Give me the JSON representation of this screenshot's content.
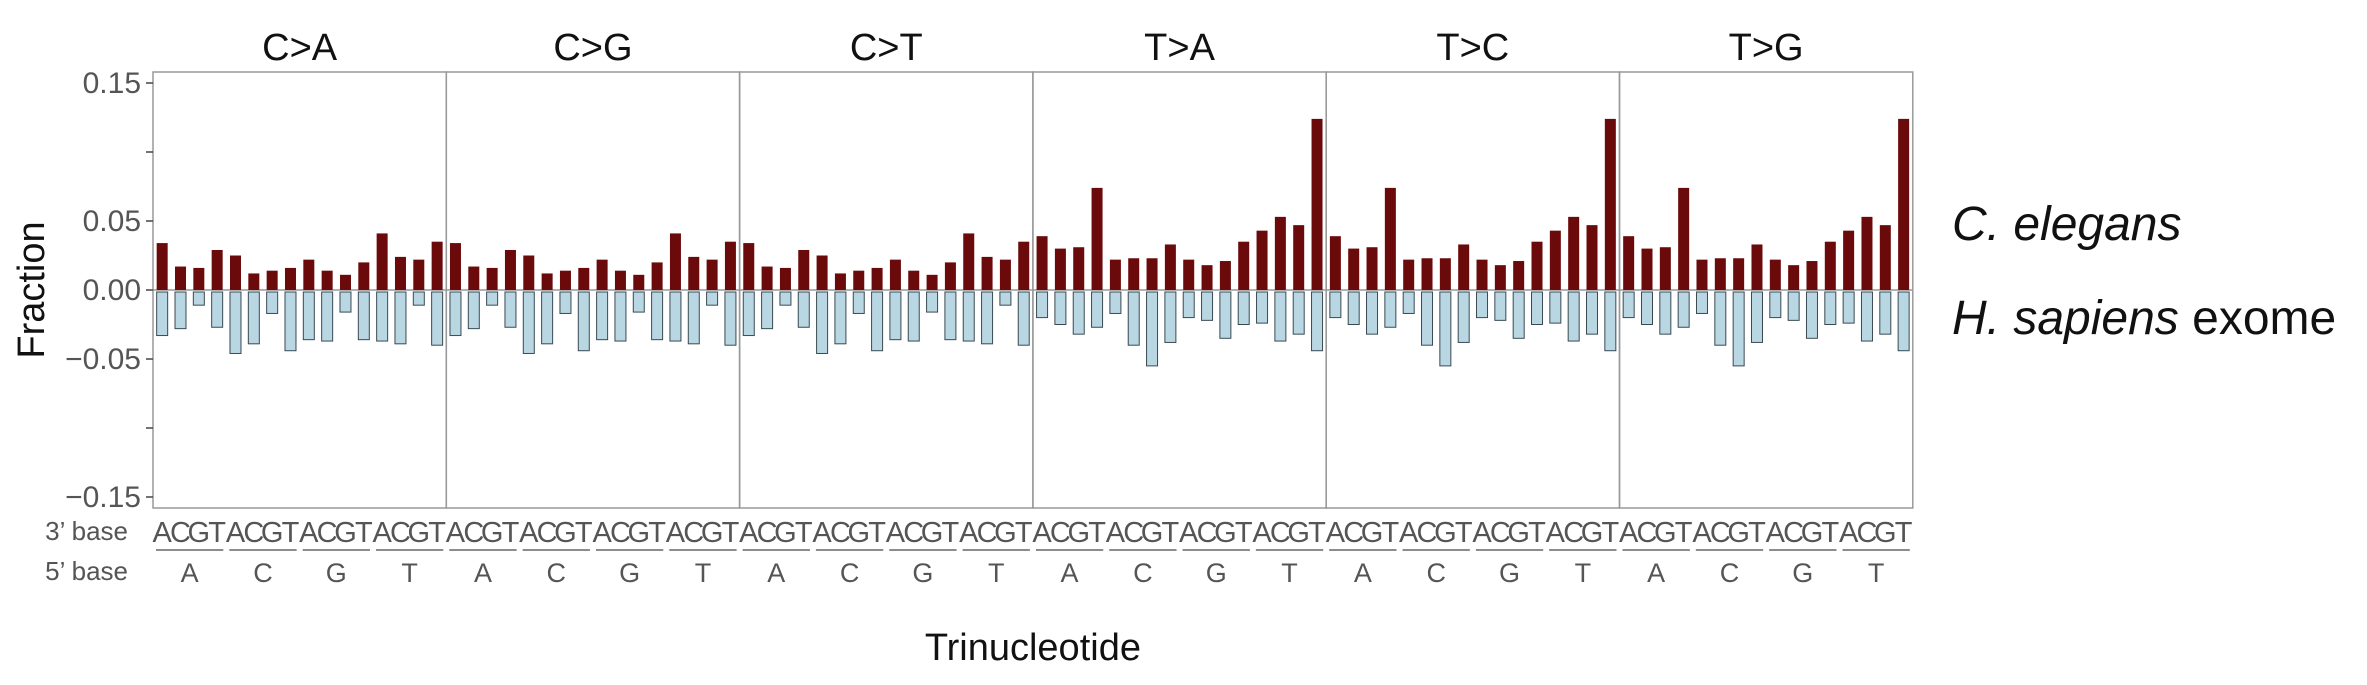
{
  "chart_data": {
    "type": "bar",
    "xlabel": "Trinucleotide",
    "ylabel": "Fraction",
    "ylim": [
      -0.16,
      0.16
    ],
    "yticks": [
      0.15,
      0.05,
      0.0,
      -0.05,
      -0.15
    ],
    "ytick_labels": [
      "0.15",
      "0.05",
      "0.00",
      "−0.05",
      "−0.15"
    ],
    "grid": false,
    "facet_labels": [
      "C>A",
      "C>G",
      "C>T",
      "T>A",
      "T>C",
      "T>G"
    ],
    "row_labels": {
      "three_prime": "3’ base",
      "five_prime": "5’ base"
    },
    "three_prime_bases": [
      "A",
      "C",
      "G",
      "T"
    ],
    "five_prime_bases": [
      "A",
      "C",
      "G",
      "T"
    ],
    "series_labels": [
      {
        "italic": "C. elegans",
        "plain": ""
      },
      {
        "italic": "H. sapiens",
        "plain": " exome"
      }
    ],
    "colors": {
      "positive": "#6b0a0a",
      "negative": "#b9d6e3",
      "negative_stroke": "#3a4a52",
      "panel_border": "#999999",
      "text": "#222222",
      "axis_text": "#555555"
    },
    "series": [
      {
        "name": "C. elegans",
        "facets": [
          [
            0.034,
            0.017,
            0.016,
            0.029,
            0.025,
            0.012,
            0.014,
            0.016,
            0.022,
            0.014,
            0.011,
            0.02,
            0.041,
            0.024,
            0.022,
            0.035
          ],
          [
            0.034,
            0.017,
            0.016,
            0.029,
            0.025,
            0.012,
            0.014,
            0.016,
            0.022,
            0.014,
            0.011,
            0.02,
            0.041,
            0.024,
            0.022,
            0.035
          ],
          [
            0.034,
            0.017,
            0.016,
            0.029,
            0.025,
            0.012,
            0.014,
            0.016,
            0.022,
            0.014,
            0.011,
            0.02,
            0.041,
            0.024,
            0.022,
            0.035
          ],
          [
            0.039,
            0.03,
            0.031,
            0.074,
            0.022,
            0.023,
            0.023,
            0.033,
            0.022,
            0.018,
            0.021,
            0.035,
            0.043,
            0.053,
            0.047,
            0.124
          ],
          [
            0.039,
            0.03,
            0.031,
            0.074,
            0.022,
            0.023,
            0.023,
            0.033,
            0.022,
            0.018,
            0.021,
            0.035,
            0.043,
            0.053,
            0.047,
            0.124
          ],
          [
            0.039,
            0.03,
            0.031,
            0.074,
            0.022,
            0.023,
            0.023,
            0.033,
            0.022,
            0.018,
            0.021,
            0.035,
            0.043,
            0.053,
            0.047,
            0.124
          ]
        ]
      },
      {
        "name": "H. sapiens exome",
        "facets": [
          [
            -0.033,
            -0.028,
            -0.011,
            -0.027,
            -0.046,
            -0.039,
            -0.017,
            -0.044,
            -0.036,
            -0.037,
            -0.016,
            -0.036,
            -0.037,
            -0.039,
            -0.011,
            -0.04
          ],
          [
            -0.033,
            -0.028,
            -0.011,
            -0.027,
            -0.046,
            -0.039,
            -0.017,
            -0.044,
            -0.036,
            -0.037,
            -0.016,
            -0.036,
            -0.037,
            -0.039,
            -0.011,
            -0.04
          ],
          [
            -0.033,
            -0.028,
            -0.011,
            -0.027,
            -0.046,
            -0.039,
            -0.017,
            -0.044,
            -0.036,
            -0.037,
            -0.016,
            -0.036,
            -0.037,
            -0.039,
            -0.011,
            -0.04
          ],
          [
            -0.02,
            -0.025,
            -0.032,
            -0.027,
            -0.017,
            -0.04,
            -0.055,
            -0.038,
            -0.02,
            -0.022,
            -0.035,
            -0.025,
            -0.024,
            -0.037,
            -0.032,
            -0.044
          ],
          [
            -0.02,
            -0.025,
            -0.032,
            -0.027,
            -0.017,
            -0.04,
            -0.055,
            -0.038,
            -0.02,
            -0.022,
            -0.035,
            -0.025,
            -0.024,
            -0.037,
            -0.032,
            -0.044
          ],
          [
            -0.02,
            -0.025,
            -0.032,
            -0.027,
            -0.017,
            -0.04,
            -0.055,
            -0.038,
            -0.02,
            -0.022,
            -0.035,
            -0.025,
            -0.024,
            -0.037,
            -0.032,
            -0.044
          ]
        ]
      }
    ]
  }
}
